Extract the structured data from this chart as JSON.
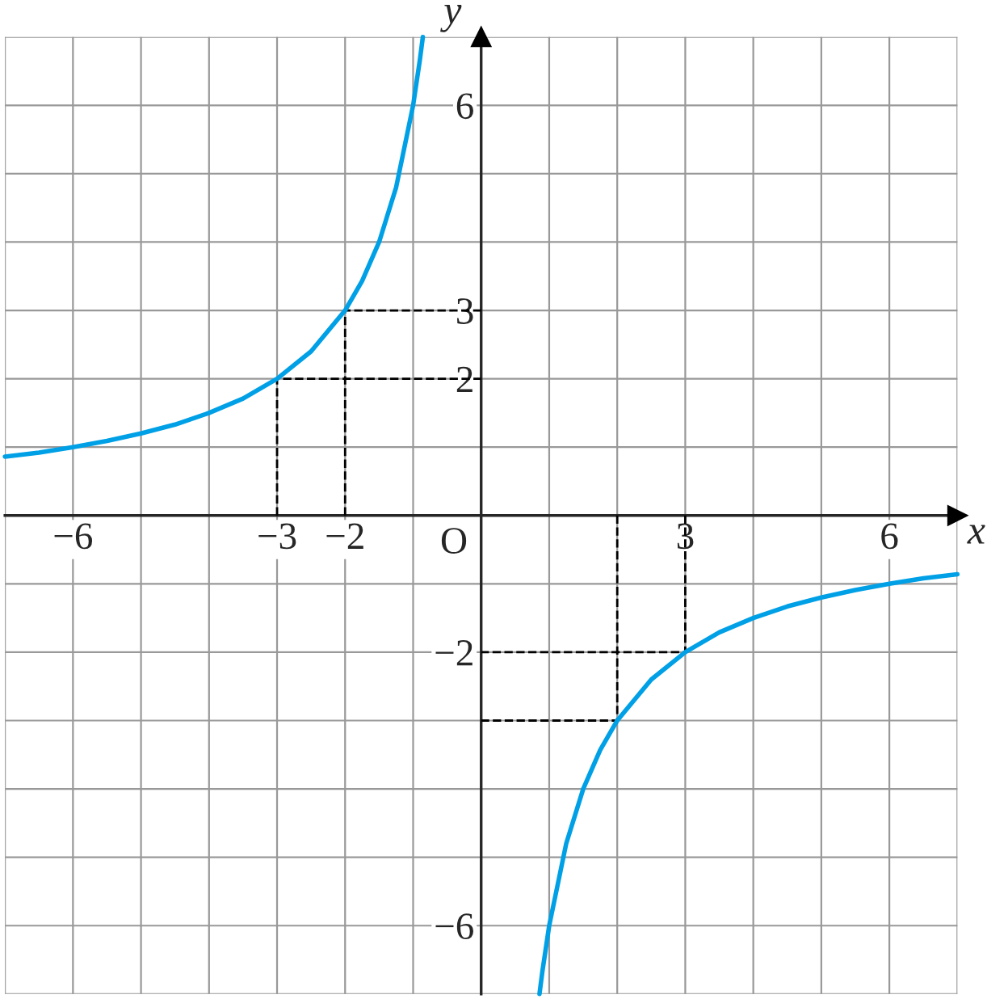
{
  "chart_data": {
    "type": "line",
    "xlabel": "x",
    "ylabel": "y",
    "xlim": [
      -7,
      7
    ],
    "ylim": [
      -7,
      7
    ],
    "grid": true,
    "tick_labels": true,
    "xticks": [
      {
        "value": -7,
        "label": null
      },
      {
        "value": -6,
        "label": "−6"
      },
      {
        "value": -5,
        "label": null
      },
      {
        "value": -4,
        "label": null
      },
      {
        "value": -3,
        "label": "−3"
      },
      {
        "value": -2,
        "label": "−2"
      },
      {
        "value": -1,
        "label": null
      },
      {
        "value": 0,
        "label": null
      },
      {
        "value": 1,
        "label": null
      },
      {
        "value": 2,
        "label": null
      },
      {
        "value": 3,
        "label": "3"
      },
      {
        "value": 4,
        "label": null
      },
      {
        "value": 5,
        "label": null
      },
      {
        "value": 6,
        "label": "6"
      },
      {
        "value": 7,
        "label": null
      }
    ],
    "yticks": [
      {
        "value": -7,
        "label": null
      },
      {
        "value": -6,
        "label": "−6"
      },
      {
        "value": -5,
        "label": null
      },
      {
        "value": -4,
        "label": null
      },
      {
        "value": -3,
        "label": null
      },
      {
        "value": -2,
        "label": "−2"
      },
      {
        "value": -1,
        "label": null
      },
      {
        "value": 0,
        "label": null
      },
      {
        "value": 1,
        "label": null
      },
      {
        "value": 2,
        "label": "2"
      },
      {
        "value": 3,
        "label": "3"
      },
      {
        "value": 4,
        "label": null
      },
      {
        "value": 5,
        "label": null
      },
      {
        "value": 6,
        "label": "6"
      },
      {
        "value": 7,
        "label": null
      }
    ],
    "annotations": [
      "O"
    ],
    "series": [
      {
        "color": "#00a0e6",
        "line_style": "solid",
        "x": [
          -7,
          -6.5,
          -6,
          -5.5,
          -5,
          -4.5,
          -4,
          -3.5,
          -3,
          -2.5,
          -2,
          -1.75,
          -1.5,
          -1.25,
          -1,
          -0.9,
          -0.857,
          0,
          0.857,
          0.9,
          1,
          1.25,
          1.5,
          1.75,
          2,
          2.5,
          3,
          3.5,
          4,
          4.5,
          5,
          5.5,
          6,
          6.5,
          7
        ],
        "values": [
          0.86,
          0.92,
          1,
          1.09,
          1.2,
          1.33,
          1.5,
          1.71,
          2,
          2.4,
          3,
          3.43,
          4,
          4.8,
          6,
          6.67,
          7,
          null,
          -7,
          -6.67,
          -6,
          -4.8,
          -4,
          -3.43,
          -3,
          -2.4,
          -2,
          -1.71,
          -1.5,
          -1.33,
          -1.2,
          -1.09,
          -1,
          -0.92,
          -0.86
        ]
      },
      {
        "color": "#000000",
        "line_style": "dashed",
        "x": [
          -3,
          -3,
          0
        ],
        "values": [
          0,
          2,
          2
        ]
      },
      {
        "color": "#000000",
        "line_style": "dashed",
        "x": [
          -2,
          -2,
          0
        ],
        "values": [
          0,
          3,
          3
        ]
      },
      {
        "color": "#000000",
        "line_style": "dashed",
        "x": [
          3,
          3,
          0
        ],
        "values": [
          0,
          -2,
          -2
        ]
      },
      {
        "color": "#000000",
        "line_style": "dashed",
        "x": [
          2,
          2,
          0
        ],
        "values": [
          0,
          -3,
          -3
        ]
      }
    ]
  }
}
